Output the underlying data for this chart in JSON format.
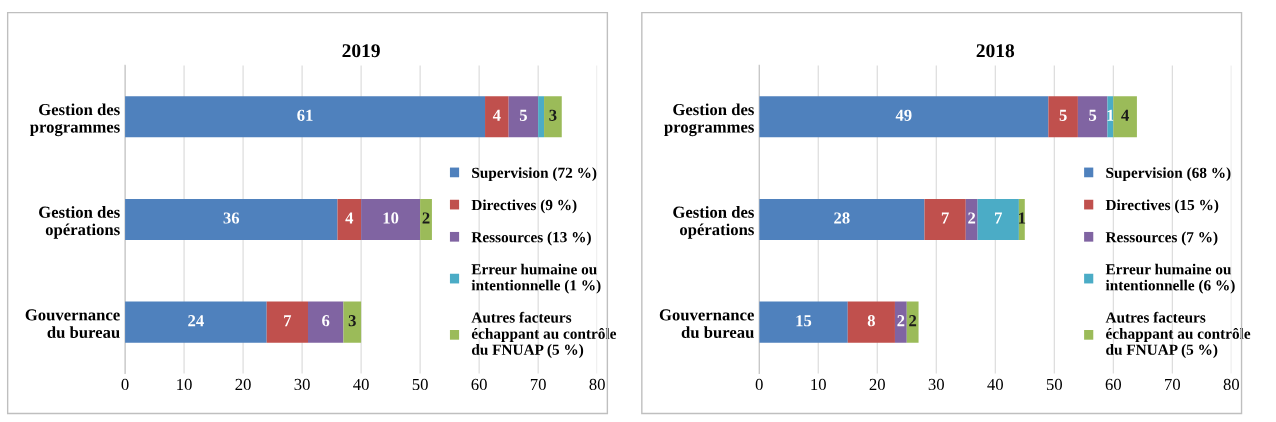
{
  "chart_data": [
    {
      "type": "bar",
      "orientation": "horizontal",
      "stacked": true,
      "title": "2019",
      "categories": [
        "Gestion des\nprogrammes",
        "Gestion des\nopérations",
        "Gouvernance\ndu bureau"
      ],
      "xlim": [
        0,
        80
      ],
      "xticks": [
        0,
        10,
        20,
        30,
        40,
        50,
        60,
        70,
        80
      ],
      "grid": "x",
      "legend": "right",
      "series": [
        {
          "name": "Supervision (72 %)",
          "color": "#4f81bd",
          "values": [
            61,
            36,
            24
          ],
          "value_labels": [
            "61",
            "36",
            "24"
          ]
        },
        {
          "name": "Directives (9 %)",
          "color": "#c0504d",
          "values": [
            4,
            4,
            7
          ],
          "value_labels": [
            "4",
            "4",
            "7"
          ]
        },
        {
          "name": "Ressources (13 %)",
          "color": "#8064a2",
          "values": [
            5,
            10,
            6
          ],
          "value_labels": [
            "5",
            "10",
            "6"
          ]
        },
        {
          "name": "Erreur humaine ou\nintentionnelle (1 %)",
          "color": "#4bacc6",
          "values": [
            1,
            0,
            0
          ],
          "value_labels": [
            null,
            null,
            null
          ]
        },
        {
          "name": "Autres facteurs\néchappant au contrôle\ndu FNUAP (5 %)",
          "color": "#9bbb59",
          "values": [
            3,
            2,
            3
          ],
          "value_labels": [
            "3",
            "2",
            "3"
          ]
        }
      ]
    },
    {
      "type": "bar",
      "orientation": "horizontal",
      "stacked": true,
      "title": "2018",
      "categories": [
        "Gestion des\nprogrammes",
        "Gestion des\nopérations",
        "Gouvernance\ndu bureau"
      ],
      "xlim": [
        0,
        80
      ],
      "xticks": [
        0,
        10,
        20,
        30,
        40,
        50,
        60,
        70,
        80
      ],
      "grid": "x",
      "legend": "right",
      "series": [
        {
          "name": "Supervision (68 %)",
          "color": "#4f81bd",
          "values": [
            49,
            28,
            15
          ],
          "value_labels": [
            "49",
            "28",
            "15"
          ]
        },
        {
          "name": "Directives (15 %)",
          "color": "#c0504d",
          "values": [
            5,
            7,
            8
          ],
          "value_labels": [
            "5",
            "7",
            "8"
          ]
        },
        {
          "name": "Ressources (7 %)",
          "color": "#8064a2",
          "values": [
            5,
            2,
            2
          ],
          "value_labels": [
            "5",
            "2",
            "2"
          ]
        },
        {
          "name": "Erreur humaine ou\nintentionnelle (6 %)",
          "color": "#4bacc6",
          "values": [
            1,
            7,
            0
          ],
          "value_labels": [
            "1",
            "7",
            null
          ]
        },
        {
          "name": "Autres facteurs\néchappant au contrôle\ndu FNUAP (5 %)",
          "color": "#9bbb59",
          "values": [
            4,
            1,
            2
          ],
          "value_labels": [
            "4",
            "1",
            "2"
          ]
        }
      ]
    }
  ]
}
